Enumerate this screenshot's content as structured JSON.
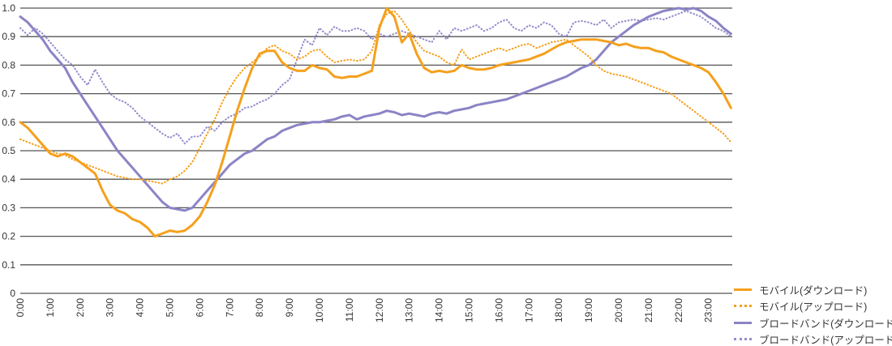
{
  "chart_data": {
    "type": "line",
    "title": "",
    "xlabel": "",
    "ylabel": "",
    "grid": true,
    "background": "#ffffff",
    "grid_color": "#555555",
    "text_color": "#333333",
    "legend_position": "bottom-right",
    "x_axis": {
      "start_hour": 0,
      "step_hours": 0.25,
      "tick_labels": [
        "0:00",
        "1:00",
        "2:00",
        "3:00",
        "4:00",
        "5:00",
        "6:00",
        "7:00",
        "8:00",
        "9:00",
        "10:00",
        "11:00",
        "12:00",
        "13:00",
        "14:00",
        "15:00",
        "16:00",
        "17:00",
        "18:00",
        "19:00",
        "20:00",
        "21:00",
        "22:00",
        "23:00"
      ]
    },
    "y_axis": {
      "min": 0,
      "max": 1.0,
      "tick_labels": [
        "0",
        "0.1",
        "0.2",
        "0.3",
        "0.4",
        "0.5",
        "0.6",
        "0.7",
        "0.8",
        "0.9",
        "1.0"
      ]
    },
    "series": [
      {
        "name": "モバイル(ダウンロード)",
        "color": "#F5A01D",
        "style": "solid",
        "values": [
          0.6,
          0.58,
          0.55,
          0.52,
          0.49,
          0.48,
          0.49,
          0.48,
          0.46,
          0.44,
          0.42,
          0.36,
          0.31,
          0.29,
          0.28,
          0.26,
          0.25,
          0.23,
          0.2,
          0.21,
          0.22,
          0.215,
          0.22,
          0.24,
          0.27,
          0.32,
          0.38,
          0.46,
          0.55,
          0.64,
          0.72,
          0.79,
          0.84,
          0.85,
          0.85,
          0.81,
          0.79,
          0.78,
          0.78,
          0.8,
          0.79,
          0.785,
          0.76,
          0.755,
          0.76,
          0.76,
          0.77,
          0.78,
          0.93,
          1.0,
          0.97,
          0.88,
          0.91,
          0.84,
          0.79,
          0.775,
          0.78,
          0.775,
          0.78,
          0.8,
          0.79,
          0.785,
          0.785,
          0.79,
          0.8,
          0.805,
          0.81,
          0.815,
          0.82,
          0.83,
          0.84,
          0.855,
          0.87,
          0.88,
          0.885,
          0.89,
          0.89,
          0.89,
          0.885,
          0.88,
          0.87,
          0.875,
          0.865,
          0.86,
          0.86,
          0.85,
          0.845,
          0.83,
          0.82,
          0.81,
          0.8,
          0.79,
          0.775,
          0.74,
          0.7,
          0.65
        ]
      },
      {
        "name": "モバイル(アップロード)",
        "color": "#F5A01D",
        "style": "dotted",
        "values": [
          0.54,
          0.53,
          0.52,
          0.51,
          0.5,
          0.49,
          0.485,
          0.47,
          0.46,
          0.45,
          0.44,
          0.43,
          0.42,
          0.41,
          0.405,
          0.4,
          0.4,
          0.395,
          0.39,
          0.385,
          0.4,
          0.41,
          0.43,
          0.46,
          0.51,
          0.56,
          0.61,
          0.67,
          0.72,
          0.76,
          0.79,
          0.81,
          0.83,
          0.86,
          0.87,
          0.85,
          0.84,
          0.82,
          0.83,
          0.85,
          0.855,
          0.83,
          0.81,
          0.815,
          0.82,
          0.815,
          0.82,
          0.85,
          0.94,
          0.98,
          0.99,
          0.96,
          0.92,
          0.88,
          0.85,
          0.84,
          0.83,
          0.81,
          0.8,
          0.855,
          0.82,
          0.83,
          0.84,
          0.85,
          0.86,
          0.85,
          0.86,
          0.87,
          0.875,
          0.86,
          0.87,
          0.88,
          0.885,
          0.89,
          0.87,
          0.85,
          0.83,
          0.8,
          0.78,
          0.77,
          0.765,
          0.76,
          0.75,
          0.74,
          0.73,
          0.72,
          0.71,
          0.7,
          0.68,
          0.66,
          0.64,
          0.62,
          0.6,
          0.58,
          0.56,
          0.53
        ]
      },
      {
        "name": "ブロードバンド(ダウンロード)",
        "color": "#8B84C5",
        "style": "solid",
        "values": [
          0.97,
          0.95,
          0.92,
          0.89,
          0.85,
          0.82,
          0.79,
          0.74,
          0.7,
          0.66,
          0.62,
          0.58,
          0.54,
          0.5,
          0.47,
          0.44,
          0.41,
          0.38,
          0.35,
          0.32,
          0.3,
          0.295,
          0.29,
          0.3,
          0.33,
          0.36,
          0.39,
          0.42,
          0.45,
          0.47,
          0.49,
          0.5,
          0.52,
          0.54,
          0.55,
          0.57,
          0.58,
          0.59,
          0.595,
          0.6,
          0.6,
          0.605,
          0.61,
          0.62,
          0.625,
          0.61,
          0.62,
          0.625,
          0.63,
          0.64,
          0.635,
          0.625,
          0.63,
          0.625,
          0.62,
          0.63,
          0.635,
          0.63,
          0.64,
          0.645,
          0.65,
          0.66,
          0.665,
          0.67,
          0.675,
          0.68,
          0.69,
          0.7,
          0.71,
          0.72,
          0.73,
          0.74,
          0.75,
          0.76,
          0.775,
          0.79,
          0.8,
          0.82,
          0.85,
          0.88,
          0.9,
          0.92,
          0.94,
          0.955,
          0.97,
          0.98,
          0.99,
          0.995,
          1.0,
          0.995,
          1.0,
          0.99,
          0.97,
          0.955,
          0.93,
          0.91
        ]
      },
      {
        "name": "ブロードバンド(アップロード)",
        "color": "#948DCC",
        "style": "dotted",
        "values": [
          0.93,
          0.905,
          0.93,
          0.91,
          0.88,
          0.85,
          0.82,
          0.8,
          0.76,
          0.73,
          0.785,
          0.74,
          0.7,
          0.68,
          0.67,
          0.65,
          0.62,
          0.6,
          0.58,
          0.56,
          0.545,
          0.56,
          0.525,
          0.55,
          0.55,
          0.585,
          0.57,
          0.6,
          0.62,
          0.63,
          0.65,
          0.655,
          0.67,
          0.68,
          0.7,
          0.73,
          0.75,
          0.82,
          0.89,
          0.87,
          0.93,
          0.905,
          0.935,
          0.92,
          0.92,
          0.93,
          0.92,
          0.89,
          0.91,
          0.9,
          0.91,
          0.92,
          0.91,
          0.9,
          0.89,
          0.88,
          0.92,
          0.89,
          0.93,
          0.92,
          0.93,
          0.94,
          0.92,
          0.93,
          0.95,
          0.96,
          0.93,
          0.92,
          0.94,
          0.93,
          0.95,
          0.94,
          0.91,
          0.9,
          0.95,
          0.955,
          0.95,
          0.94,
          0.96,
          0.93,
          0.95,
          0.955,
          0.96,
          0.955,
          0.96,
          0.965,
          0.96,
          0.97,
          0.98,
          0.99,
          0.98,
          0.97,
          0.95,
          0.93,
          0.92,
          0.9
        ]
      }
    ]
  }
}
